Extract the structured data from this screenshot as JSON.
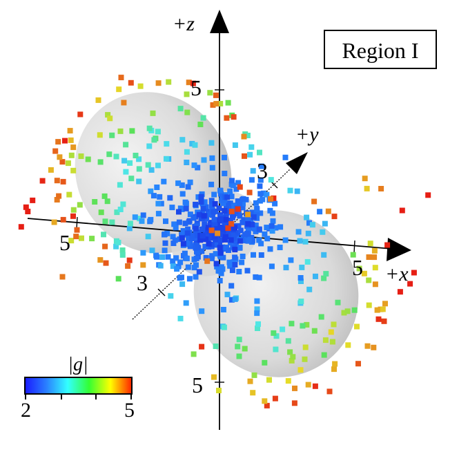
{
  "chart_data": {
    "type": "scatter",
    "region_label": "Region I",
    "axes": {
      "z_label": "+z",
      "y_label": "+y",
      "x_label": "+x",
      "z_tick": "5",
      "y_tick": "3",
      "x_tick_pos": "5",
      "x_tick_neg": "5",
      "y_tick_neg": "3",
      "z_tick_neg": "5"
    },
    "colorbar": {
      "label": "|g|",
      "min": 2,
      "max": 5,
      "min_label": "2",
      "max_label": "5",
      "colors": [
        "#1a1aff",
        "#2a7fff",
        "#33ffff",
        "#33ff33",
        "#ffff00",
        "#ff2200"
      ]
    },
    "surface": {
      "color": "#dcdcdc",
      "shape": "two-lobed (dumbbell) surface"
    },
    "point_colors": {
      "low": "#2255ee",
      "mid": "#55ddee",
      "high": "#dd2211"
    }
  }
}
